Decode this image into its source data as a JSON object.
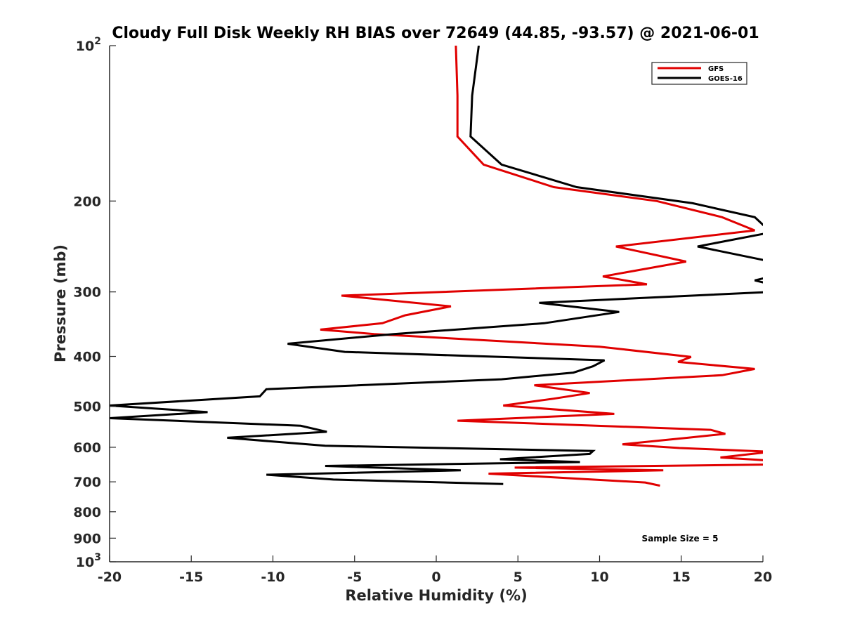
{
  "chart_data": {
    "type": "line",
    "title": "Cloudy Full Disk Weekly RH BIAS over 72649 (44.85, -93.57) @ 2021-06-01",
    "xlabel": "Relative Humidity (%)",
    "ylabel": "Pressure (mb)",
    "xlim": [
      -20,
      20
    ],
    "ylim": [
      100,
      1000
    ],
    "y_scale": "log",
    "y_reversed": true,
    "x_ticks": [
      "-20",
      "-15",
      "-10",
      "-5",
      "0",
      "5",
      "10",
      "15",
      "20"
    ],
    "y_ticks": [
      {
        "value": 100,
        "base": "10",
        "exp": "2"
      },
      {
        "value": 200,
        "label": "200"
      },
      {
        "value": 300,
        "label": "300"
      },
      {
        "value": 400,
        "label": "400"
      },
      {
        "value": 500,
        "label": "500"
      },
      {
        "value": 600,
        "label": "600"
      },
      {
        "value": 700,
        "label": "700"
      },
      {
        "value": 800,
        "label": "800"
      },
      {
        "value": 900,
        "label": "900"
      },
      {
        "value": 1000,
        "base": "10",
        "exp": "3"
      }
    ],
    "legend_position": "top-right",
    "annotation": "Sample Size = 5",
    "series": [
      {
        "name": "GFS",
        "color": "#e00000",
        "points": [
          [
            1.2,
            100
          ],
          [
            1.3,
            125
          ],
          [
            1.3,
            150
          ],
          [
            2.9,
            170
          ],
          [
            7.2,
            188
          ],
          [
            13.5,
            200
          ],
          [
            17.5,
            215
          ],
          [
            19.5,
            228
          ],
          [
            11.0,
            245
          ],
          [
            15.3,
            262
          ],
          [
            10.2,
            280
          ],
          [
            12.9,
            290
          ],
          [
            -5.8,
            305
          ],
          [
            0.9,
            320
          ],
          [
            -1.9,
            333
          ],
          [
            -3.3,
            345
          ],
          [
            -7.1,
            355
          ],
          [
            -3.8,
            362
          ],
          [
            10.0,
            383
          ],
          [
            15.6,
            401
          ],
          [
            14.8,
            410
          ],
          [
            19.5,
            423
          ],
          [
            17.5,
            435
          ],
          [
            6.0,
            455
          ],
          [
            9.4,
            471
          ],
          [
            7.2,
            483
          ],
          [
            4.1,
            498
          ],
          [
            10.9,
            517
          ],
          [
            1.3,
            533
          ],
          [
            16.8,
            555
          ],
          [
            17.7,
            565
          ],
          [
            15.4,
            575
          ],
          [
            11.4,
            592
          ],
          [
            14.9,
            602
          ],
          [
            20.5,
            612
          ],
          [
            17.4,
            628
          ],
          [
            20.5,
            637
          ],
          [
            20.5,
            648
          ],
          [
            4.8,
            657
          ],
          [
            13.9,
            665
          ],
          [
            3.2,
            675
          ],
          [
            8.6,
            690
          ],
          [
            12.8,
            702
          ],
          [
            13.7,
            712
          ]
        ]
      },
      {
        "name": "GOES-16",
        "color": "#000000",
        "points": [
          [
            2.6,
            100
          ],
          [
            2.2,
            125
          ],
          [
            2.1,
            150
          ],
          [
            4.0,
            170
          ],
          [
            8.6,
            188
          ],
          [
            15.7,
            202
          ],
          [
            19.5,
            215
          ],
          [
            20.5,
            230
          ],
          [
            16.0,
            245
          ],
          [
            20.5,
            262
          ],
          [
            20.5,
            280
          ],
          [
            19.5,
            285
          ],
          [
            20.5,
            290
          ],
          [
            20.5,
            300
          ],
          [
            6.3,
            315
          ],
          [
            11.2,
            328
          ],
          [
            6.6,
            345
          ],
          [
            -2.6,
            362
          ],
          [
            -9.1,
            378
          ],
          [
            -5.6,
            392
          ],
          [
            10.3,
            407
          ],
          [
            9.6,
            418
          ],
          [
            8.4,
            430
          ],
          [
            4.0,
            443
          ],
          [
            -10.4,
            463
          ],
          [
            -10.8,
            478
          ],
          [
            -20.0,
            498
          ],
          [
            -14.0,
            513
          ],
          [
            -20.0,
            527
          ],
          [
            -8.3,
            545
          ],
          [
            -6.7,
            560
          ],
          [
            -12.8,
            575
          ],
          [
            -6.8,
            596
          ],
          [
            9.6,
            610
          ],
          [
            9.4,
            618
          ],
          [
            3.9,
            633
          ],
          [
            8.8,
            641
          ],
          [
            -6.8,
            652
          ],
          [
            1.5,
            665
          ],
          [
            -10.4,
            678
          ],
          [
            -6.3,
            693
          ],
          [
            4.1,
            707
          ]
        ]
      }
    ]
  }
}
